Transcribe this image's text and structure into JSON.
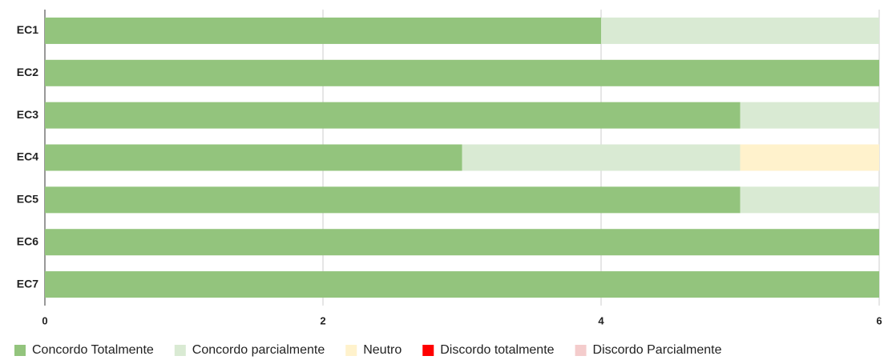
{
  "chart_data": {
    "type": "stacked-barh",
    "categories": [
      "EC1",
      "EC2",
      "EC3",
      "EC4",
      "EC5",
      "EC6",
      "EC7"
    ],
    "series": [
      {
        "name": "Concordo Totalmente",
        "color": "#93c47d",
        "values": [
          4,
          6,
          5,
          3,
          5,
          6,
          6
        ]
      },
      {
        "name": "Concordo parcialmente",
        "color": "#d9ead3",
        "values": [
          2,
          0,
          1,
          2,
          1,
          0,
          0
        ]
      },
      {
        "name": "Neutro",
        "color": "#fff2cc",
        "values": [
          0,
          0,
          0,
          1,
          0,
          0,
          0
        ]
      },
      {
        "name": "Discordo totalmente",
        "color": "#ff0000",
        "values": [
          0,
          0,
          0,
          0,
          0,
          0,
          0
        ]
      },
      {
        "name": "Discordo Parcialmente",
        "color": "#f4cccc",
        "values": [
          0,
          0,
          0,
          0,
          0,
          0,
          0
        ]
      }
    ],
    "xlim": [
      0,
      6
    ],
    "xticks": [
      0,
      2,
      4,
      6
    ],
    "grid": true,
    "legend": "bottom"
  }
}
